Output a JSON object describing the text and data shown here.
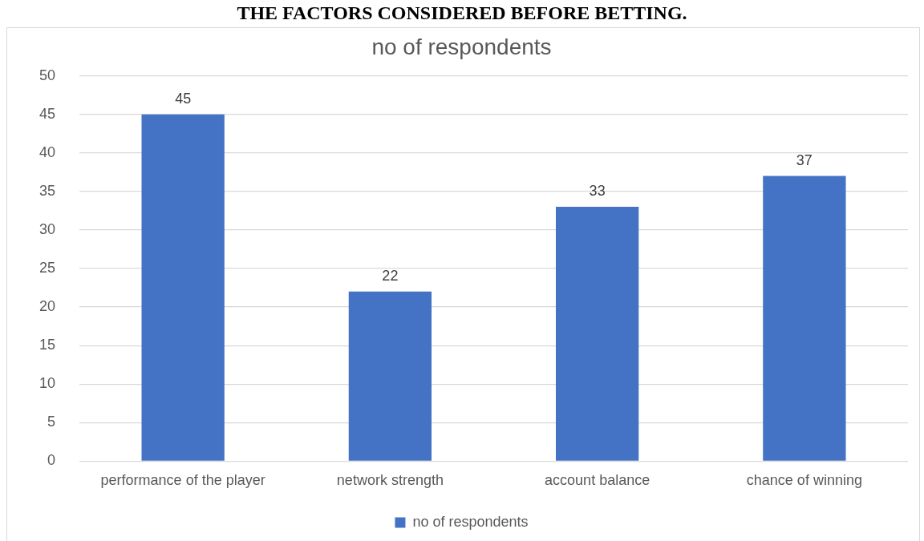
{
  "chart_data": {
    "type": "bar",
    "title": "THE FACTORS CONSIDERED BEFORE BETTING.",
    "subtitle": "no of respondents",
    "categories": [
      "performance of the player",
      "network strength",
      "account balance",
      "chance of winning"
    ],
    "series": [
      {
        "name": "no of respondents",
        "color": "#4472c4",
        "values": [
          45,
          22,
          33,
          37
        ]
      }
    ],
    "ylim": [
      0,
      50
    ],
    "yticks": [
      0,
      5,
      10,
      15,
      20,
      25,
      30,
      35,
      40,
      45,
      50
    ],
    "grid": "y",
    "legend": "bottom",
    "data_labels": true
  }
}
